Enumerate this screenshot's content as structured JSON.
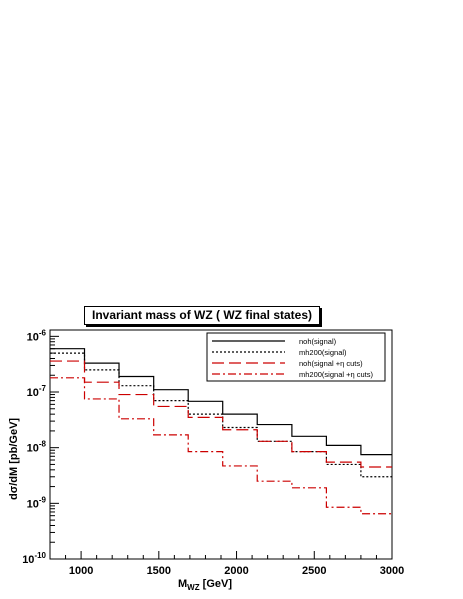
{
  "chart_data": {
    "type": "line",
    "title": "Invariant mass of WZ ( WZ final states)",
    "xlabel": "M_WZ  [GeV]",
    "ylabel": "dσ/dM  [pb/GeV]",
    "x_scale": "linear",
    "y_scale": "log",
    "xlim": [
      800,
      3000
    ],
    "ylim": [
      1e-10,
      1.3e-06
    ],
    "x_ticks": [
      "1000",
      "1500",
      "2000",
      "2500",
      "3000"
    ],
    "y_ticks": [
      "10^-6",
      "10^-7",
      "10^-8",
      "10^-9",
      "10^-10"
    ],
    "legend_position": "top-right",
    "bin_edges": [
      800,
      1022,
      1244,
      1467,
      1689,
      1911,
      2133,
      2356,
      2578,
      2800,
      3000
    ],
    "series": [
      {
        "name": "noh(signal)",
        "color": "#000000",
        "style": "solid",
        "values": [
          6e-07,
          3.3e-07,
          1.9e-07,
          1.1e-07,
          6.8e-08,
          4e-08,
          2.6e-08,
          1.6e-08,
          1.1e-08,
          7.5e-09
        ]
      },
      {
        "name": "mh200(signal)",
        "color": "#000000",
        "style": "dotted",
        "values": [
          5e-07,
          2.5e-07,
          1.3e-07,
          7e-08,
          4e-08,
          2.3e-08,
          1.3e-08,
          8.5e-09,
          5e-09,
          3e-09
        ]
      },
      {
        "name": "noh(signal +η cuts)",
        "color": "#cc0000",
        "style": "dashed",
        "values": [
          3.6e-07,
          1.5e-07,
          9e-08,
          5.5e-08,
          3.5e-08,
          2.1e-08,
          1.3e-08,
          8.5e-09,
          5.5e-09,
          4.5e-09
        ]
      },
      {
        "name": "mh200(signal +η cuts)",
        "color": "#cc0000",
        "style": "dashdot",
        "values": [
          1.8e-07,
          7.5e-08,
          3.3e-08,
          1.7e-08,
          8.5e-09,
          4.7e-09,
          2.5e-09,
          1.9e-09,
          8.5e-10,
          6.5e-10
        ]
      }
    ]
  }
}
